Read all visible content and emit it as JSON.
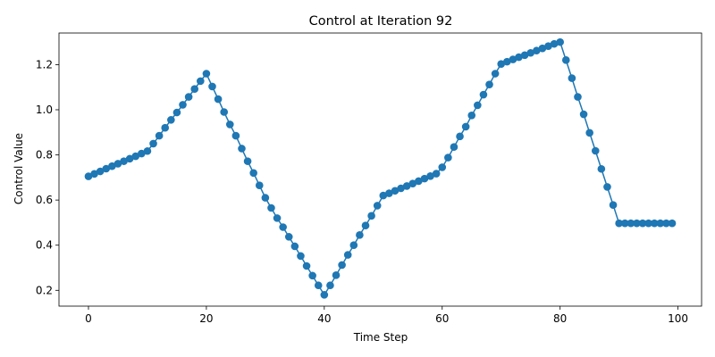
{
  "chart_data": {
    "type": "line",
    "title": "Control at Iteration 92",
    "xlabel": "Time Step",
    "ylabel": "Control Value",
    "xlim": [
      -5,
      104
    ],
    "ylim": [
      0.13,
      1.34
    ],
    "xticks": [
      0,
      20,
      40,
      60,
      80,
      100
    ],
    "yticks": [
      0.2,
      0.4,
      0.6,
      0.8,
      1.0,
      1.2
    ],
    "xtick_labels": [
      "0",
      "20",
      "40",
      "60",
      "80",
      "100"
    ],
    "ytick_labels": [
      "0.2",
      "0.4",
      "0.6",
      "0.8",
      "1.0",
      "1.2"
    ],
    "grid": false,
    "legend": "none",
    "series": [
      {
        "color": "#1f77b4",
        "marker": "circle",
        "x": [
          0,
          1,
          2,
          3,
          4,
          5,
          6,
          7,
          8,
          9,
          10,
          11,
          12,
          13,
          14,
          15,
          16,
          17,
          18,
          19,
          20,
          21,
          22,
          23,
          24,
          25,
          26,
          27,
          28,
          29,
          30,
          31,
          32,
          33,
          34,
          35,
          36,
          37,
          38,
          39,
          40,
          41,
          42,
          43,
          44,
          45,
          46,
          47,
          48,
          49,
          50,
          51,
          52,
          53,
          54,
          55,
          56,
          57,
          58,
          59,
          60,
          61,
          62,
          63,
          64,
          65,
          66,
          67,
          68,
          69,
          70,
          71,
          72,
          73,
          74,
          75,
          76,
          77,
          78,
          79,
          80,
          81,
          82,
          83,
          84,
          85,
          86,
          87,
          88,
          89,
          90,
          91,
          92,
          93,
          94,
          95,
          96,
          97,
          98,
          99
        ],
        "y": [
          0.705,
          0.716,
          0.727,
          0.739,
          0.75,
          0.761,
          0.772,
          0.783,
          0.794,
          0.806,
          0.817,
          0.85,
          0.885,
          0.92,
          0.955,
          0.988,
          1.022,
          1.057,
          1.092,
          1.127,
          1.16,
          1.103,
          1.047,
          0.99,
          0.935,
          0.885,
          0.828,
          0.772,
          0.72,
          0.665,
          0.61,
          0.565,
          0.52,
          0.48,
          0.437,
          0.395,
          0.352,
          0.308,
          0.265,
          0.222,
          0.18,
          0.222,
          0.267,
          0.312,
          0.357,
          0.4,
          0.445,
          0.487,
          0.53,
          0.575,
          0.62,
          0.63,
          0.641,
          0.652,
          0.662,
          0.673,
          0.684,
          0.695,
          0.706,
          0.717,
          0.745,
          0.788,
          0.835,
          0.882,
          0.925,
          0.975,
          1.02,
          1.067,
          1.112,
          1.16,
          1.203,
          1.213,
          1.223,
          1.233,
          1.242,
          1.252,
          1.262,
          1.272,
          1.282,
          1.292,
          1.3,
          1.22,
          1.14,
          1.057,
          0.98,
          0.898,
          0.818,
          0.738,
          0.658,
          0.578,
          0.497,
          0.497,
          0.497,
          0.497,
          0.497,
          0.497,
          0.497,
          0.497,
          0.497,
          0.497
        ]
      }
    ]
  }
}
